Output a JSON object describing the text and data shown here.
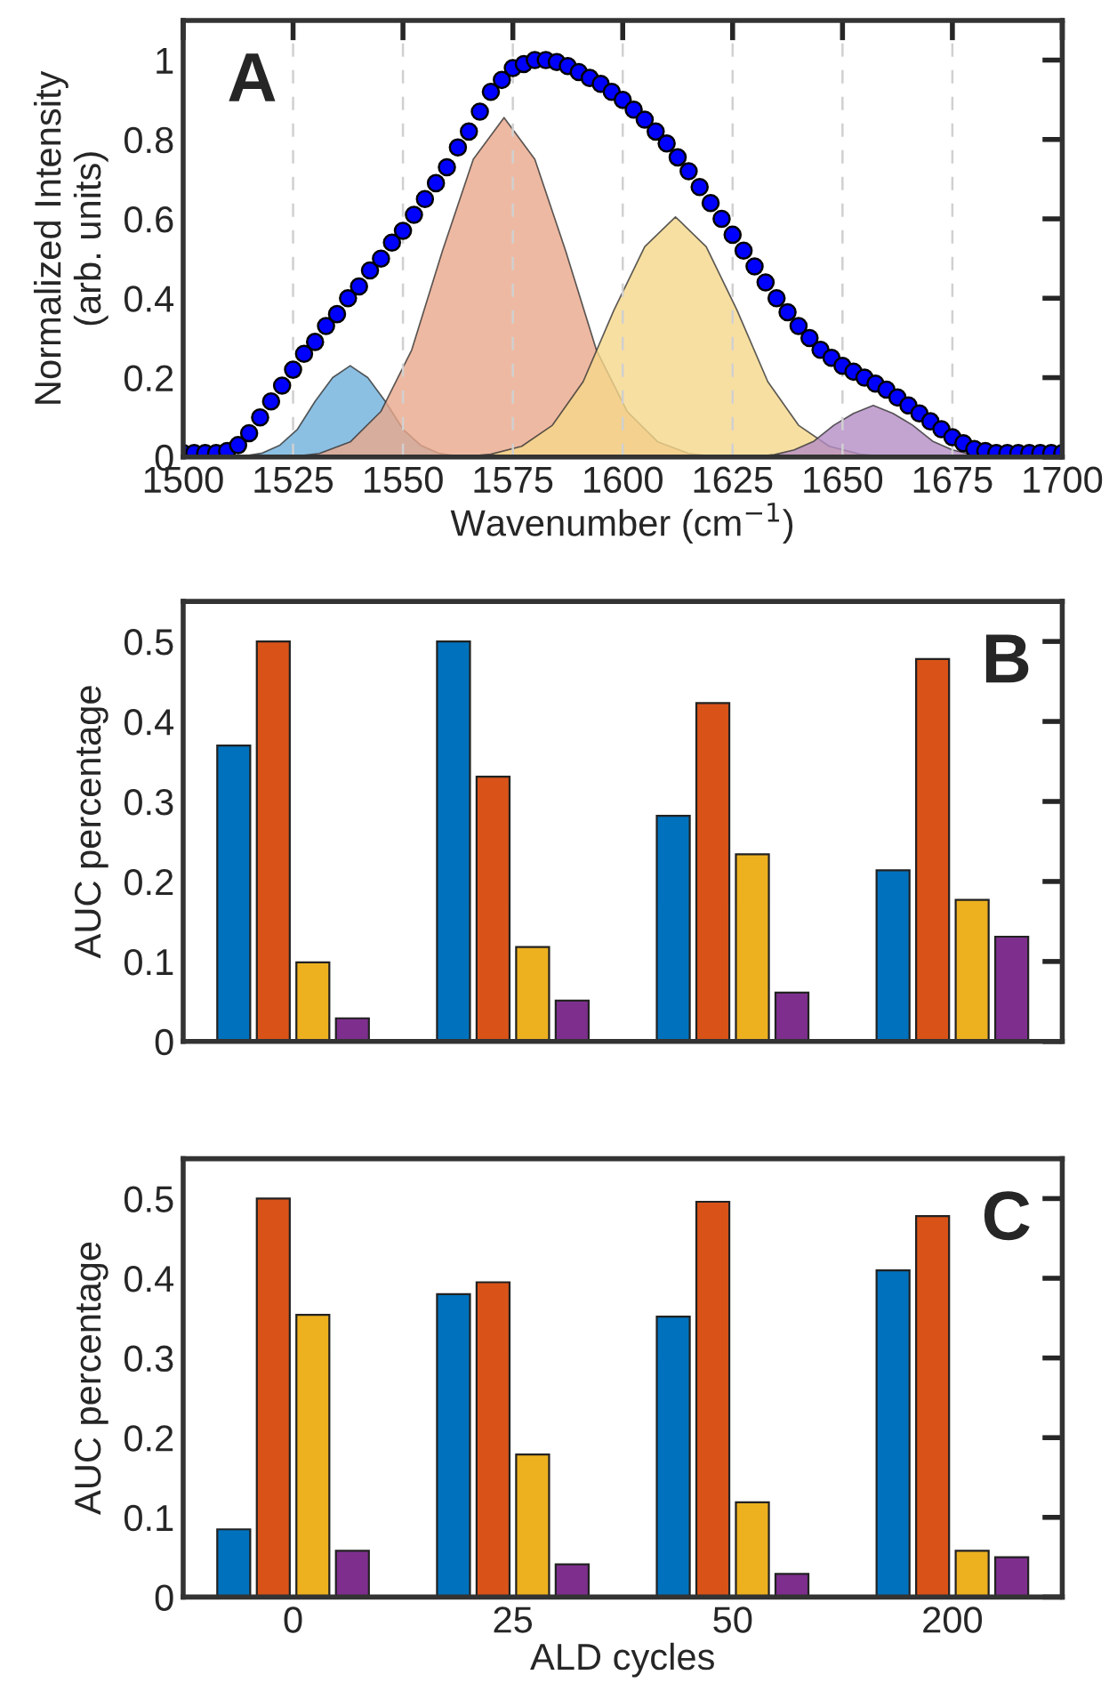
{
  "chart_data": [
    {
      "type": "area",
      "xlabel": "Wavenumber (cm$^{−1}$)",
      "ylabel": "Normalized Intensity\n(arb. units)",
      "annotations": [
        "A"
      ],
      "xlim": [
        1500,
        1700
      ],
      "ylim": [
        0,
        1.1
      ],
      "xticks": [
        1500,
        1525,
        1550,
        1575,
        1600,
        1625,
        1650,
        1675,
        1700
      ],
      "yticks": [
        0,
        0.2,
        0.4,
        0.6,
        0.8,
        1
      ],
      "grid": "x",
      "series": [
        {
          "color": "#6fb0dc",
          "x": [
            1510,
            1514,
            1518,
            1522,
            1526,
            1530,
            1534,
            1538,
            1542,
            1546,
            1550,
            1554,
            1558,
            1562,
            1566
          ],
          "values": [
            0,
            0.003,
            0.01,
            0.03,
            0.07,
            0.14,
            0.2,
            0.23,
            0.2,
            0.14,
            0.07,
            0.03,
            0.01,
            0.003,
            0
          ]
        },
        {
          "color": "#eaa88b",
          "x": [
            1524,
            1531,
            1538,
            1545,
            1552,
            1559,
            1566,
            1573,
            1580,
            1587,
            1594,
            1601,
            1608,
            1615,
            1622
          ],
          "values": [
            0,
            0.009,
            0.038,
            0.115,
            0.27,
            0.52,
            0.75,
            0.855,
            0.75,
            0.52,
            0.27,
            0.115,
            0.038,
            0.009,
            0
          ]
        },
        {
          "color": "#f5d78b",
          "x": [
            1563,
            1570,
            1577,
            1584,
            1591,
            1598,
            1605,
            1612,
            1619,
            1626,
            1633,
            1640,
            1647,
            1654,
            1661
          ],
          "values": [
            0,
            0.007,
            0.027,
            0.08,
            0.19,
            0.37,
            0.53,
            0.605,
            0.53,
            0.37,
            0.19,
            0.08,
            0.027,
            0.007,
            0
          ]
        },
        {
          "color": "#b48cc4",
          "x": [
            1625,
            1630,
            1634.5,
            1639,
            1643.5,
            1648,
            1652.5,
            1657,
            1661.5,
            1666,
            1670.5,
            1675,
            1679.5,
            1684,
            1689
          ],
          "values": [
            0,
            0.001,
            0.006,
            0.018,
            0.04,
            0.08,
            0.11,
            0.13,
            0.11,
            0.08,
            0.04,
            0.018,
            0.006,
            0.001,
            0
          ]
        },
        {
          "type": "scatter",
          "marker": "circle",
          "color": "#0000ff",
          "x": [
            1500,
            1502.5,
            1505,
            1507.5,
            1510,
            1512.5,
            1515,
            1517.5,
            1520,
            1522.5,
            1525,
            1527.5,
            1530,
            1532.5,
            1535,
            1537.5,
            1540,
            1542.5,
            1545,
            1547.5,
            1550,
            1552.5,
            1555,
            1557.5,
            1560,
            1562.5,
            1565,
            1567.5,
            1570,
            1572.5,
            1575,
            1577.5,
            1580,
            1582.5,
            1585,
            1587.5,
            1590,
            1592.5,
            1595,
            1597.5,
            1600,
            1602.5,
            1605,
            1607.5,
            1610,
            1612.5,
            1615,
            1617.5,
            1620,
            1622.5,
            1625,
            1627.5,
            1630,
            1632.5,
            1635,
            1637.5,
            1640,
            1642.5,
            1645,
            1647.5,
            1650,
            1652.5,
            1655,
            1657.5,
            1660,
            1662.5,
            1665,
            1667.5,
            1670,
            1672.5,
            1675,
            1677.5,
            1680,
            1682.5,
            1685,
            1687.5,
            1690,
            1692.5,
            1695,
            1697.5,
            1700
          ],
          "values": [
            0.01,
            0.01,
            0.01,
            0.01,
            0.015,
            0.03,
            0.06,
            0.1,
            0.14,
            0.18,
            0.22,
            0.26,
            0.29,
            0.33,
            0.36,
            0.4,
            0.43,
            0.47,
            0.5,
            0.54,
            0.57,
            0.61,
            0.65,
            0.69,
            0.73,
            0.78,
            0.82,
            0.87,
            0.92,
            0.95,
            0.98,
            0.99,
            1.0,
            1.0,
            0.995,
            0.985,
            0.97,
            0.955,
            0.94,
            0.92,
            0.9,
            0.875,
            0.85,
            0.82,
            0.79,
            0.755,
            0.72,
            0.68,
            0.64,
            0.6,
            0.56,
            0.52,
            0.48,
            0.44,
            0.4,
            0.365,
            0.33,
            0.3,
            0.27,
            0.25,
            0.23,
            0.215,
            0.2,
            0.185,
            0.17,
            0.15,
            0.13,
            0.11,
            0.09,
            0.07,
            0.05,
            0.035,
            0.02,
            0.015,
            0.01,
            0.01,
            0.01,
            0.01,
            0.01,
            0.01,
            0.01
          ]
        }
      ]
    },
    {
      "type": "bar",
      "ylabel": "AUC percentage",
      "annotations": [
        "B"
      ],
      "categories": [
        "0",
        "25",
        "50",
        "200"
      ],
      "tick_labels": "y",
      "ylim": [
        0,
        0.55
      ],
      "yticks": [
        0,
        0.1,
        0.2,
        0.3,
        0.4,
        0.5
      ],
      "series": [
        {
          "color": "#0072bd",
          "values": [
            0.37,
            0.5,
            0.282,
            0.214
          ]
        },
        {
          "color": "#d95319",
          "values": [
            0.5,
            0.331,
            0.423,
            0.478
          ]
        },
        {
          "color": "#edb120",
          "values": [
            0.099,
            0.118,
            0.234,
            0.177
          ]
        },
        {
          "color": "#7e2f8e",
          "values": [
            0.029,
            0.051,
            0.061,
            0.131
          ]
        }
      ]
    },
    {
      "type": "bar",
      "ylabel": "AUC percentage",
      "xlabel": "ALD cycles",
      "annotations": [
        "C"
      ],
      "categories": [
        "0",
        "25",
        "50",
        "200"
      ],
      "ylim": [
        0,
        0.55
      ],
      "yticks": [
        0,
        0.1,
        0.2,
        0.3,
        0.4,
        0.5
      ],
      "series": [
        {
          "color": "#0072bd",
          "values": [
            0.085,
            0.38,
            0.352,
            0.41
          ]
        },
        {
          "color": "#d95319",
          "values": [
            0.5,
            0.395,
            0.496,
            0.478
          ]
        },
        {
          "color": "#edb120",
          "values": [
            0.354,
            0.179,
            0.119,
            0.058
          ]
        },
        {
          "color": "#7e2f8e",
          "values": [
            0.058,
            0.041,
            0.029,
            0.05
          ]
        }
      ]
    }
  ]
}
